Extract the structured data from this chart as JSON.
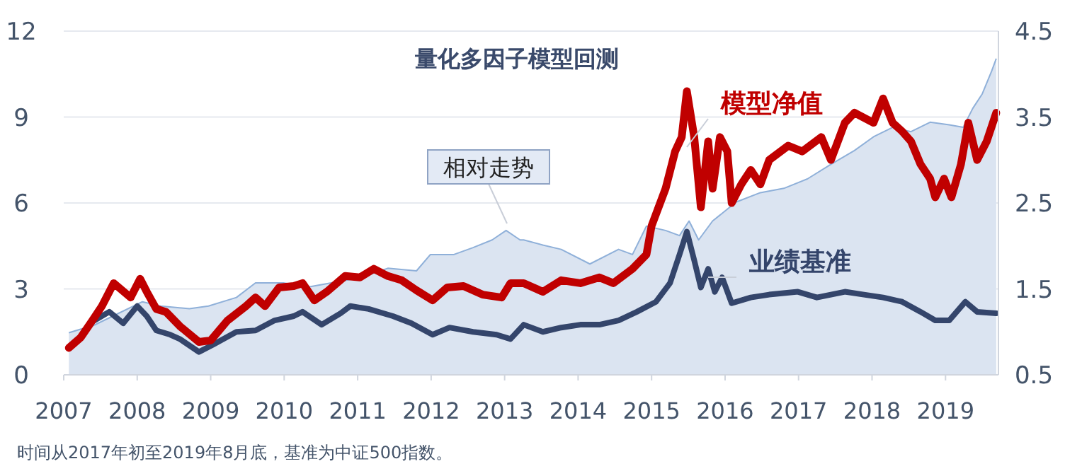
{
  "chart_data": {
    "type": "line",
    "title": "量化多因子模型回测",
    "annotations": [
      "时间从2017年初至2019年8月底，基准为中证500指数。"
    ],
    "xlim": [
      2007,
      2019.72
    ],
    "xticks": [
      2007,
      2008,
      2009,
      2010,
      2011,
      2012,
      2013,
      2014,
      2015,
      2016,
      2017,
      2018,
      2019
    ],
    "ylim": [
      0,
      12
    ],
    "yticks": [
      0,
      3,
      6,
      9,
      12
    ],
    "y2lim": [
      0.5,
      4.5
    ],
    "y2ticks": [
      0.5,
      1.5,
      2.5,
      3.5,
      4.5
    ],
    "grid": "y",
    "series": [
      {
        "name": "相对走势",
        "type": "area",
        "axis": "y2",
        "color": "#8fb0d9",
        "x": [
          2007.07,
          2007.42,
          2008.07,
          2008.32,
          2008.71,
          2008.97,
          2009.35,
          2009.61,
          2009.99,
          2010.32,
          2010.64,
          2011.03,
          2011.41,
          2011.8,
          2011.99,
          2012.31,
          2012.57,
          2012.83,
          2013.02,
          2013.21,
          2013.26,
          2013.52,
          2013.77,
          2014.16,
          2014.55,
          2014.74,
          2014.93,
          2015.19,
          2015.38,
          2015.51,
          2015.64,
          2015.83,
          2016.15,
          2016.48,
          2016.8,
          2017.12,
          2017.44,
          2017.76,
          2018.02,
          2018.28,
          2018.53,
          2018.79,
          2019.05,
          2019.24,
          2019.37,
          2019.5,
          2019.63,
          2019.69
        ],
        "values": [
          0.99,
          1.08,
          1.35,
          1.3,
          1.27,
          1.3,
          1.4,
          1.57,
          1.57,
          1.52,
          1.57,
          1.63,
          1.74,
          1.71,
          1.9,
          1.9,
          1.98,
          2.07,
          2.18,
          2.07,
          2.07,
          2.01,
          1.96,
          1.79,
          1.96,
          1.9,
          2.23,
          2.18,
          2.12,
          2.29,
          2.07,
          2.29,
          2.51,
          2.62,
          2.67,
          2.78,
          2.95,
          3.11,
          3.27,
          3.38,
          3.33,
          3.44,
          3.41,
          3.38,
          3.6,
          3.77,
          4.04,
          4.18
        ]
      },
      {
        "name": "业绩基准",
        "color": "#34456b",
        "x": [
          2007.42,
          2007.62,
          2007.81,
          2008.0,
          2008.13,
          2008.26,
          2008.45,
          2008.58,
          2008.84,
          2009.03,
          2009.35,
          2009.61,
          2009.87,
          2010.13,
          2010.25,
          2010.51,
          2010.77,
          2010.9,
          2011.15,
          2011.48,
          2011.73,
          2012.02,
          2012.25,
          2012.57,
          2012.89,
          2013.08,
          2013.26,
          2013.52,
          2013.77,
          2014.03,
          2014.29,
          2014.55,
          2014.8,
          2015.06,
          2015.25,
          2015.38,
          2015.48,
          2015.58,
          2015.67,
          2015.77,
          2015.86,
          2015.96,
          2016.09,
          2016.35,
          2016.6,
          2016.99,
          2017.25,
          2017.63,
          2017.89,
          2018.15,
          2018.41,
          2018.66,
          2018.86,
          2019.05,
          2019.27,
          2019.43,
          2019.69
        ],
        "values": [
          1.9,
          2.2,
          1.8,
          2.4,
          2.05,
          1.55,
          1.4,
          1.25,
          0.8,
          1.05,
          1.5,
          1.55,
          1.9,
          2.05,
          2.2,
          1.75,
          2.15,
          2.4,
          2.3,
          2.05,
          1.8,
          1.4,
          1.65,
          1.5,
          1.4,
          1.25,
          1.75,
          1.5,
          1.65,
          1.75,
          1.75,
          1.9,
          2.2,
          2.55,
          3.2,
          4.2,
          5.0,
          4.0,
          3.05,
          3.7,
          2.9,
          3.4,
          2.5,
          2.7,
          2.8,
          2.9,
          2.7,
          2.9,
          2.8,
          2.7,
          2.55,
          2.2,
          1.9,
          1.9,
          2.55,
          2.2,
          2.15
        ]
      },
      {
        "name": "模型净值",
        "color": "#c00000",
        "x": [
          2007.07,
          2007.23,
          2007.39,
          2007.52,
          2007.68,
          2007.91,
          2008.04,
          2008.13,
          2008.26,
          2008.39,
          2008.58,
          2008.84,
          2009.0,
          2009.23,
          2009.48,
          2009.61,
          2009.74,
          2009.93,
          2010.13,
          2010.25,
          2010.41,
          2010.58,
          2010.83,
          2011.03,
          2011.22,
          2011.41,
          2011.6,
          2011.8,
          2012.02,
          2012.22,
          2012.44,
          2012.7,
          2012.96,
          2013.08,
          2013.26,
          2013.52,
          2013.77,
          2014.03,
          2014.29,
          2014.48,
          2014.74,
          2014.93,
          2015.0,
          2015.19,
          2015.32,
          2015.41,
          2015.48,
          2015.58,
          2015.67,
          2015.77,
          2015.83,
          2015.93,
          2016.03,
          2016.09,
          2016.22,
          2016.35,
          2016.48,
          2016.6,
          2016.86,
          2017.05,
          2017.31,
          2017.44,
          2017.63,
          2017.76,
          2018.02,
          2018.15,
          2018.28,
          2018.41,
          2018.53,
          2018.66,
          2018.79,
          2018.86,
          2018.98,
          2019.08,
          2019.21,
          2019.31,
          2019.43,
          2019.56,
          2019.69
        ],
        "values": [
          0.94,
          1.3,
          1.9,
          2.4,
          3.2,
          2.7,
          3.35,
          2.9,
          2.3,
          2.2,
          1.7,
          1.15,
          1.2,
          1.9,
          2.4,
          2.7,
          2.4,
          3.05,
          3.1,
          3.2,
          2.6,
          2.9,
          3.45,
          3.4,
          3.7,
          3.45,
          3.3,
          2.95,
          2.6,
          3.05,
          3.1,
          2.8,
          2.7,
          3.2,
          3.2,
          2.9,
          3.3,
          3.2,
          3.4,
          3.2,
          3.7,
          4.2,
          5.2,
          6.5,
          7.8,
          8.3,
          9.9,
          8.3,
          5.85,
          8.15,
          6.5,
          8.3,
          7.8,
          6.0,
          6.65,
          7.15,
          6.65,
          7.5,
          8.0,
          7.8,
          8.3,
          7.5,
          8.8,
          9.15,
          8.8,
          9.65,
          8.8,
          8.5,
          8.15,
          7.35,
          6.85,
          6.2,
          6.85,
          6.2,
          7.35,
          8.8,
          7.5,
          8.15,
          9.15
        ]
      }
    ]
  }
}
